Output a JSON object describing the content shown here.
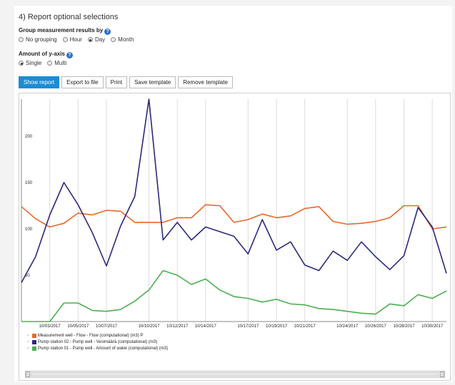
{
  "section": {
    "title": "4) Report optional selections"
  },
  "grouping": {
    "label": "Group measurement results by",
    "options": [
      "No grouping",
      "Hour",
      "Day",
      "Month"
    ],
    "selected": "Day"
  },
  "yaxis": {
    "label": "Amount of y-axis",
    "options": [
      "Single",
      "Multi"
    ],
    "selected": "Single"
  },
  "buttons": {
    "show_report": "Show report",
    "export": "Export to file",
    "print": "Print",
    "save_template": "Save template",
    "remove_template": "Remove template"
  },
  "icons": {
    "help": "help-icon",
    "legend_check": "check-icon"
  },
  "chart_data": {
    "type": "line",
    "ylim": [
      0,
      240
    ],
    "yticks": [
      50,
      100,
      150,
      200
    ],
    "x_index_range": [
      0,
      35
    ],
    "xticks": [
      {
        "i": 2,
        "label": "10/03/2017"
      },
      {
        "i": 4,
        "label": "10/05/2017"
      },
      {
        "i": 6,
        "label": "10/07/2017"
      },
      {
        "i": 9,
        "label": "10/10/2017"
      },
      {
        "i": 11,
        "label": "10/12/2017"
      },
      {
        "i": 13,
        "label": "10/14/2017"
      },
      {
        "i": 16,
        "label": "10/17/2017"
      },
      {
        "i": 18,
        "label": "10/19/2017"
      },
      {
        "i": 20,
        "label": "10/21/2017"
      },
      {
        "i": 23,
        "label": "10/24/2017"
      },
      {
        "i": 25,
        "label": "10/26/2017"
      },
      {
        "i": 27,
        "label": "10/28/2017"
      },
      {
        "i": 29,
        "label": "10/30/2017"
      }
    ],
    "grid": "vertical",
    "legend_position": "bottom-left",
    "series": [
      {
        "name": "Measurement well - Flow - Flow (computational) (m3) P",
        "color": "#e8672a",
        "values": [
          124,
          111,
          102,
          106,
          117,
          115,
          120,
          119,
          107,
          107,
          107,
          112,
          112,
          126,
          125,
          107,
          110,
          116,
          112,
          114,
          122,
          124,
          108,
          105,
          106,
          108,
          112,
          125,
          125,
          100,
          102
        ]
      },
      {
        "name": "Pump station 02 - Pump well - Vesimäärä (computational) (m3)",
        "color": "#2a2a7a",
        "values": [
          42,
          70,
          115,
          150,
          126,
          96,
          60,
          103,
          135,
          240,
          88,
          107,
          88,
          102,
          97,
          92,
          73,
          110,
          77,
          86,
          61,
          55,
          76,
          66,
          86,
          70,
          56,
          71,
          123,
          102,
          52
        ]
      },
      {
        "name": "Pump station 01 - Pump well - Amount of water (computational) (m3)",
        "color": "#4caf50",
        "values": [
          0,
          0,
          0,
          20,
          20,
          12,
          11,
          13,
          22,
          34,
          55,
          50,
          40,
          46,
          34,
          27,
          25,
          21,
          24,
          19,
          18,
          14,
          13,
          11,
          9,
          8,
          19,
          17,
          29,
          25,
          33
        ]
      }
    ]
  }
}
